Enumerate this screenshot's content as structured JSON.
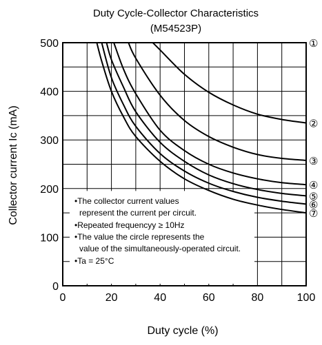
{
  "chart_data": {
    "type": "line",
    "title": "Duty Cycle-Collector Characteristics",
    "subtitle": "(M54523P)",
    "xlabel": "Duty cycle  (%)",
    "ylabel": "Collector current  Ic (mA)",
    "xlim": [
      0,
      100
    ],
    "ylim": [
      0,
      500
    ],
    "x_ticks": [
      "0",
      "20",
      "40",
      "60",
      "80",
      "100"
    ],
    "y_ticks": [
      "0",
      "100",
      "200",
      "300",
      "400",
      "500"
    ],
    "grid": true,
    "series": [
      {
        "name": "①",
        "x": [
          51,
          60,
          70,
          80,
          90,
          100
        ],
        "y": [
          500,
          500,
          500,
          500,
          500,
          500
        ]
      },
      {
        "name": "②",
        "x": [
          37,
          40,
          50,
          60,
          70,
          80,
          90,
          100
        ],
        "y": [
          500,
          485,
          435,
          398,
          372,
          353,
          342,
          335
        ]
      },
      {
        "name": "③",
        "x": [
          27,
          30,
          40,
          50,
          60,
          70,
          80,
          90,
          100
        ],
        "y": [
          500,
          468,
          392,
          340,
          307,
          285,
          270,
          262,
          258
        ]
      },
      {
        "name": "④",
        "x": [
          21,
          25,
          30,
          40,
          50,
          60,
          70,
          80,
          90,
          100
        ],
        "y": [
          500,
          445,
          395,
          320,
          278,
          250,
          232,
          220,
          212,
          208
        ]
      },
      {
        "name": "⑤",
        "x": [
          18,
          20,
          25,
          30,
          40,
          50,
          60,
          70,
          80,
          90,
          100
        ],
        "y": [
          500,
          465,
          408,
          358,
          295,
          256,
          228,
          210,
          198,
          190,
          185
        ]
      },
      {
        "name": "⑥",
        "x": [
          16,
          20,
          25,
          30,
          40,
          50,
          60,
          70,
          80,
          90,
          100
        ],
        "y": [
          500,
          428,
          372,
          328,
          272,
          236,
          211,
          194,
          182,
          174,
          168
        ]
      },
      {
        "name": "⑦",
        "x": [
          14,
          16,
          20,
          25,
          30,
          40,
          50,
          60,
          70,
          80,
          90,
          100
        ],
        "y": [
          500,
          462,
          400,
          347,
          307,
          256,
          220,
          196,
          178,
          166,
          157,
          150
        ]
      }
    ],
    "notes": [
      "•The collector current values",
      "represent the current per circuit.",
      "•Repeated frequencyy  ≥ 10Hz",
      "•The value the circle represents the",
      "value of the simultaneously-operated circuit.",
      "•Ta = 25°C"
    ]
  }
}
